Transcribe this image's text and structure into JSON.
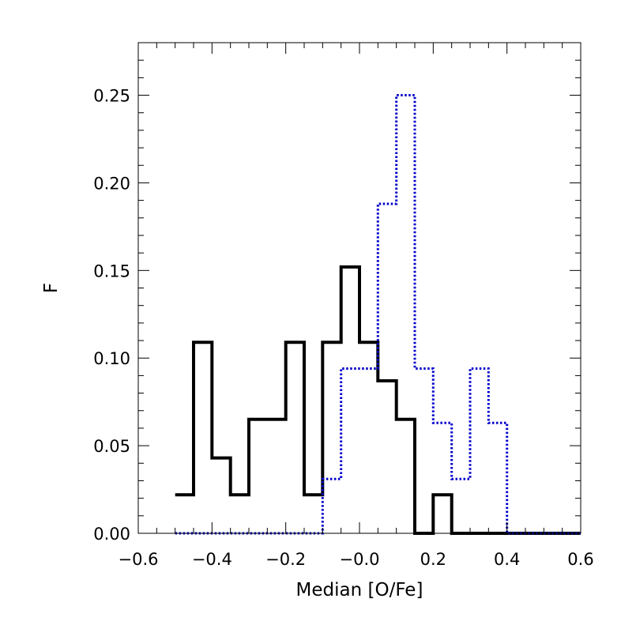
{
  "chart_data": {
    "type": "histogram",
    "title": "",
    "xlabel": "Median [O/Fe]",
    "ylabel": "F",
    "xlim": [
      -0.6,
      0.6
    ],
    "ylim": [
      0.0,
      0.28
    ],
    "grid": false,
    "legend": "none",
    "x_ticks": [
      -0.6,
      -0.4,
      -0.2,
      0.0,
      0.2,
      0.4,
      0.6
    ],
    "x_tick_labels": [
      "−0.6",
      "−0.4",
      "−0.2",
      "−0.0",
      "0.2",
      "0.4",
      "0.6"
    ],
    "y_ticks": [
      0.0,
      0.05,
      0.1,
      0.15,
      0.2,
      0.25
    ],
    "y_tick_labels": [
      "0.00",
      "0.05",
      "0.10",
      "0.15",
      "0.20",
      "0.25"
    ],
    "x_minor_step": 0.05,
    "y_minor_step": 0.01,
    "series": [
      {
        "style": "solid",
        "color": "#000000",
        "bin_edges": [
          -0.5,
          -0.45,
          -0.4,
          -0.35,
          -0.3,
          -0.25,
          -0.2,
          -0.15,
          -0.1,
          -0.05,
          0.0,
          0.05,
          0.1,
          0.15,
          0.2,
          0.25,
          0.3,
          0.35,
          0.4,
          0.45,
          0.5,
          0.55,
          0.6
        ],
        "values": [
          0.022,
          0.109,
          0.043,
          0.022,
          0.065,
          0.065,
          0.109,
          0.022,
          0.109,
          0.152,
          0.109,
          0.087,
          0.065,
          0.0,
          0.022,
          0.0,
          0.0,
          0.0,
          0.0,
          0.0,
          0.0,
          0.0
        ]
      },
      {
        "style": "dotted",
        "color": "#0000cc",
        "bin_edges": [
          -0.5,
          -0.45,
          -0.4,
          -0.35,
          -0.3,
          -0.25,
          -0.2,
          -0.15,
          -0.1,
          -0.05,
          0.0,
          0.05,
          0.1,
          0.15,
          0.2,
          0.25,
          0.3,
          0.35,
          0.4,
          0.45,
          0.5,
          0.55,
          0.6
        ],
        "values": [
          0.0,
          0.0,
          0.0,
          0.0,
          0.0,
          0.0,
          0.0,
          0.0,
          0.031,
          0.094,
          0.094,
          0.188,
          0.25,
          0.094,
          0.063,
          0.031,
          0.094,
          0.063,
          0.0,
          0.0,
          0.0,
          0.0
        ]
      }
    ]
  }
}
